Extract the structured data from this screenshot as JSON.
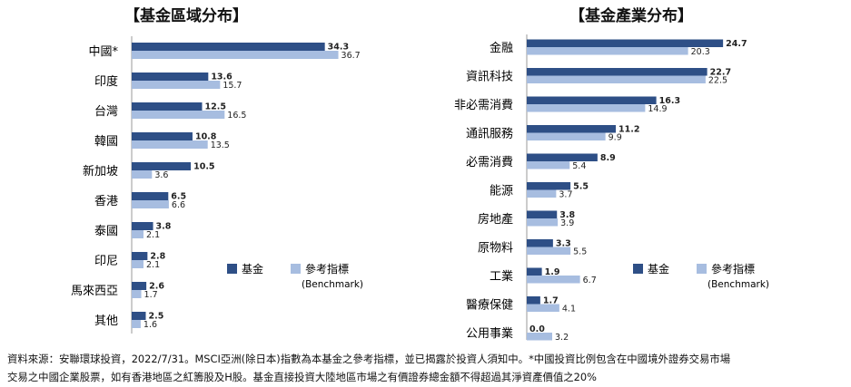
{
  "chart_data": [
    {
      "type": "bar",
      "orientation": "horizontal",
      "title": "【基金區域分布】",
      "categories": [
        "中國*",
        "印度",
        "台灣",
        "韓國",
        "新加坡",
        "香港",
        "泰國",
        "印尼",
        "馬來西亞",
        "其他"
      ],
      "series": [
        {
          "name": "基金",
          "color": "#2e4f86",
          "values": [
            34.3,
            13.6,
            12.5,
            10.8,
            10.5,
            6.5,
            3.8,
            2.8,
            2.6,
            2.5
          ]
        },
        {
          "name": "參考指標",
          "color": "#a7bde0",
          "values": [
            36.7,
            15.7,
            16.5,
            13.5,
            3.6,
            6.6,
            2.1,
            2.1,
            1.7,
            1.6
          ]
        }
      ],
      "legend": {
        "fund": "基金",
        "bench": "參考指標",
        "bench_sub": "(Benchmark)",
        "placement": "right"
      },
      "xlim": [
        0,
        40
      ]
    },
    {
      "type": "bar",
      "orientation": "horizontal",
      "title": "【基金產業分布】",
      "categories": [
        "金融",
        "資訊科技",
        "非必需消費",
        "通訊服務",
        "必需消費",
        "能源",
        "房地產",
        "原物料",
        "工業",
        "醫療保健",
        "公用事業"
      ],
      "series": [
        {
          "name": "基金",
          "color": "#2e4f86",
          "values": [
            24.7,
            22.7,
            16.3,
            11.2,
            8.9,
            5.5,
            3.8,
            3.3,
            1.9,
            1.7,
            0.0
          ]
        },
        {
          "name": "參考指標",
          "color": "#a7bde0",
          "values": [
            20.3,
            22.5,
            14.9,
            9.9,
            5.4,
            3.7,
            3.9,
            5.5,
            6.7,
            4.1,
            3.2
          ]
        }
      ],
      "legend": {
        "fund": "基金",
        "bench": "參考指標",
        "bench_sub": "(Benchmark)",
        "placement": "right"
      },
      "xlim": [
        0,
        30
      ]
    }
  ],
  "footnote": {
    "line1": "資料來源：安聯環球投資，2022/7/31。MSCI亞洲(除日本)指數為本基金之參考指標，並已揭露於投資人須知中。*中國投資比例包含在中國境外證券交易市場",
    "line2": "交易之中國企業股票，如有香港地區之紅籌股及H股。基金直接投資大陸地區市場之有價證券總金額不得超過其淨資產價值之20%"
  }
}
